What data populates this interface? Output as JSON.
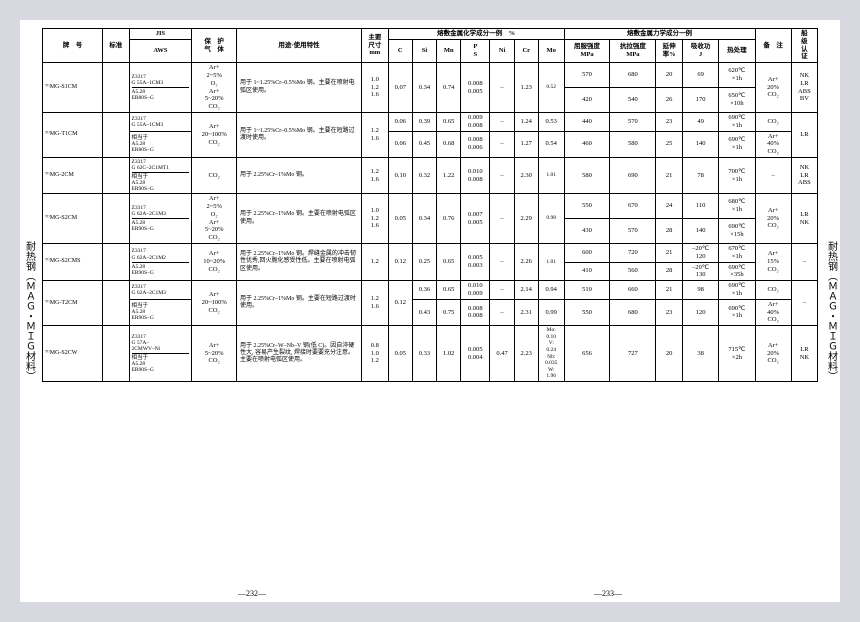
{
  "side_labels": {
    "left": "耐热钢（ＭＡＧ・ＭＩＧ材料）",
    "right": "耐热钢（ＭＡＧ・ＭＩＧ材料）"
  },
  "page_left": "—232—",
  "page_right": "—233—",
  "headers": {
    "model": "牌　号",
    "std": "标准",
    "jis": "JIS",
    "aws": "AWS",
    "gas": "保　护\n气　体",
    "use": "用途·使用特性",
    "size": "主要\n尺寸\nmm",
    "chem": "熔敷金属化学成分一例　%",
    "mech": "熔敷金属力学成分一例",
    "C": "C",
    "Si": "Si",
    "Mn": "Mn",
    "PS": "P\nS",
    "Ni": "Ni",
    "Cr": "Cr",
    "Mo": "Mo",
    "ys": "屈服强度\nMPa",
    "ts": "抗拉强度\nMPa",
    "el": "延伸\n率%",
    "iv": "吸收功\nJ",
    "ht": "热处理",
    "note": "备　注",
    "appr": "船\n级\n认\n证"
  },
  "rows": [
    {
      "model": "ᵀᴳMG-S1CM",
      "jis": "Z3317\nG 55A–1CM3",
      "aws": "A5.28\nER80S–G",
      "gas": "Ar+\n2~5%\nO₂\nAr+\n5~20%\nCO₂",
      "use": "用于 1~1.25%Cr–0.5%Mo 钢。主要在喷射电弧区使用。",
      "size": "1.0\n1.2\n1.6",
      "C": "0.07",
      "Si": "0.34",
      "Mn": "0.74",
      "PS": "0.008\n0.005",
      "Ni": "–",
      "Cr": "1.23",
      "Mo": "0.52",
      "m": [
        {
          "ys": "570",
          "ts": "680",
          "el": "20",
          "iv": "69",
          "ht": "620℃\n×1h"
        },
        {
          "ys": "420",
          "ts": "540",
          "el": "26",
          "iv": "170",
          "ht": "650℃\n×10h"
        }
      ],
      "note": "Ar+\n20%\nCO₂",
      "appr": "NK\nLR\nABS\nBV"
    },
    {
      "model": "ᵀᴳMG-T1CM",
      "sub": [
        {
          "jis": "Z3317\nG 55A–1CM3",
          "aws": "",
          "gas": "Ar+\n20~100%\nCO₂",
          "C": "0.06",
          "Si": "0.39",
          "Mn": "0.65",
          "PS": "0.009\n0.008",
          "Ni": "–",
          "Cr": "1.24",
          "Mo": "0.53",
          "ys": "440",
          "ts": "570",
          "el": "23",
          "iv": "49",
          "ht": "690℃\n×1h",
          "note": "CO₂"
        },
        {
          "jis": "相当于\nA5.28\nER80S–G",
          "aws": "",
          "C": "0.06",
          "Si": "0.45",
          "Mn": "0.68",
          "PS": "0.008\n0.006",
          "Ni": "–",
          "Cr": "1.27",
          "Mo": "0.54",
          "ys": "460",
          "ts": "580",
          "el": "25",
          "iv": "140",
          "ht": "690℃\n×1h",
          "note": "Ar+\n40%\nCO₂"
        }
      ],
      "use": "用于 1~1.25%Cr–0.5%Mo 钢。主要在短路过渡时使用。",
      "size": "1.2\n1.6",
      "appr": "LR"
    },
    {
      "model": "ᵀᴳMG-2CM",
      "jis": "Z3317\nG 62C–2C1MT1",
      "aws": "相当于\nA5.28\nER90S–G",
      "gas": "CO₂",
      "use": "用于 2.25%Cr–1%Mo 钢。",
      "size": "1.2\n1.6",
      "C": "0.10",
      "Si": "0.32",
      "Mn": "1.22",
      "PS": "0.010\n0.008",
      "Ni": "–",
      "Cr": "2.30",
      "Mo": "1.01",
      "m": [
        {
          "ys": "580",
          "ts": "690",
          "el": "21",
          "iv": "78",
          "ht": "700℃\n×1h"
        }
      ],
      "note": "–",
      "appr": "NK\nLR\nABS"
    },
    {
      "model": "ᵀᴳMG-S2CM",
      "jis": "Z3317\nG 62A–2C1M3",
      "aws": "A5.28\nER90S–G",
      "gas": "Ar+\n2~5%\nO₂\nAr+\n5~20%\nCO₂",
      "use": "用于 2.25%Cr–1%Mo 钢。主要在喷射电弧区使用。",
      "size": "1.0\n1.2\n1.6",
      "C": "0.05",
      "Si": "0.34",
      "Mn": "0.76",
      "PS": "0.007\n0.005",
      "Ni": "–",
      "Cr": "2.29",
      "Mo": "0.98",
      "m": [
        {
          "ys": "550",
          "ts": "670",
          "el": "24",
          "iv": "110",
          "ht": "680℃\n×1h"
        },
        {
          "ys": "430",
          "ts": "570",
          "el": "28",
          "iv": "140",
          "ht": "690℃\n×15h"
        }
      ],
      "note": "Ar+\n20%\nCO₂",
      "appr": "LR\nNK"
    },
    {
      "model": "ᵀᴳMG-S2CMS",
      "jis": "Z3317\nG 62A–2C1M2",
      "aws": "A5.28\nER90S–G",
      "gas": "Ar+\n10~20%\nCO₂",
      "use": "用于 2.25%Cr–1%Mo 钢。焊缝金属的冲击韧性优秀,回火脆化感受性低。主要在喷射电弧区使用。",
      "size": "1.2",
      "C": "0.12",
      "Si": "0.25",
      "Mn": "0.65",
      "PS": "0.005\n0.003",
      "Ni": "–",
      "Cr": "2.26",
      "Mo": "1.01",
      "m": [
        {
          "ys": "600",
          "ts": "720",
          "el": "21",
          "iv": "–20℃\n120",
          "ht": "670℃\n×1h"
        },
        {
          "ys": "410",
          "ts": "560",
          "el": "28",
          "iv": "–20℃\n130",
          "ht": "690℃\n×35h"
        }
      ],
      "note": "Ar+\n15%\nCO₂",
      "appr": "–"
    },
    {
      "model": "ᵀᴳMG-T2CM",
      "sub": [
        {
          "jis": "Z3317\nG 62A–2C1M3",
          "aws": "",
          "gas": "Ar+\n20~100%\nCO₂",
          "C": "",
          "Si": "0.36",
          "Mn": "0.65",
          "PS": "0.010\n0.009",
          "Ni": "–",
          "Cr": "2.14",
          "Mo": "0.94",
          "ys": "510",
          "ts": "660",
          "el": "21",
          "iv": "98",
          "ht": "690℃\n×1h",
          "note": "CO₂"
        },
        {
          "jis": "相当于\nA5.28\nER90S–G",
          "aws": "",
          "C": "",
          "Si": "0.43",
          "Mn": "0.75",
          "PS": "0.008\n0.008",
          "Ni": "–",
          "Cr": "2.31",
          "Mo": "0.99",
          "ys": "550",
          "ts": "680",
          "el": "23",
          "iv": "120",
          "ht": "690℃\n×1h",
          "note": "Ar+\n40%\nCO₂"
        }
      ],
      "Cshared": "0.12",
      "use": "用于 2.25%Cr–1%Mo 钢。主要在短路过渡时使用。",
      "size": "1.2\n1.6",
      "appr": "–"
    },
    {
      "model": "ᵀᴳMG-S2CW",
      "jis": "Z3317\nG 57A–\n2CMWV–Ni",
      "aws": "相当于\nA5.28\nER90S–G",
      "gas": "Ar+\n5~20%\nCO₂",
      "use": "用于 2.25%Cr–W–Nb–V 钢(低 C)。因自淬硬性大, 容易产生裂纹, 焊接时要要充分注意。主要在喷射电弧区使用。",
      "size": "0.8\n1.0\n1.2",
      "C": "0.05",
      "Si": "0.33",
      "Mn": "1.02",
      "PS": "0.005\n0.004",
      "Ni": "0.47",
      "Cr": "2.23",
      "Mo": "Mo:\n0.10\nV:\n0.24\nNb:\n0.035\nW:\n1.96",
      "m": [
        {
          "ys": "656",
          "ts": "727",
          "el": "20",
          "iv": "38",
          "ht": "715℃\n×2h"
        }
      ],
      "note": "Ar+\n20%\nCO₂",
      "appr": "LR\nNK"
    }
  ]
}
